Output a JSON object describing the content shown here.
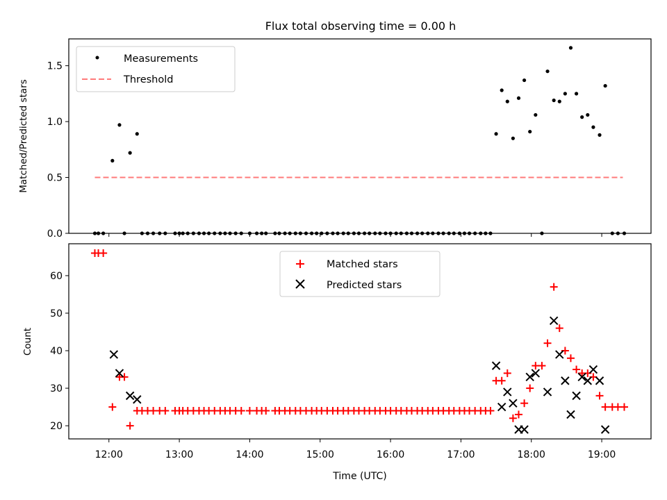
{
  "figure": {
    "title": "Flux total observing time = 0.00 h",
    "xlabel": "Time (UTC)",
    "x_tick_labels": [
      "12:00",
      "13:00",
      "14:00",
      "15:00",
      "16:00",
      "17:00",
      "18:00",
      "19:00"
    ]
  },
  "chart_data": [
    {
      "type": "scatter",
      "title": "Flux total observing time = 0.00 h",
      "ylabel": "Matched/Predicted stars",
      "xlabel": "",
      "x_unit": "hours UTC",
      "xlim": [
        11.43,
        19.7
      ],
      "ylim": [
        0,
        1.74
      ],
      "y_ticks": [
        "0.0",
        "0.5",
        "1.0",
        "1.5"
      ],
      "legend_location": "upper left",
      "series": [
        {
          "name": "Measurements",
          "marker": "dot",
          "color": "#000000",
          "points": [
            [
              11.8,
              0
            ],
            [
              11.85,
              0
            ],
            [
              11.92,
              0
            ],
            [
              12.05,
              0.65
            ],
            [
              12.15,
              0.97
            ],
            [
              12.22,
              0
            ],
            [
              12.3,
              0.72
            ],
            [
              12.4,
              0.89
            ],
            [
              12.47,
              0
            ],
            [
              12.55,
              0
            ],
            [
              12.63,
              0
            ],
            [
              12.72,
              0
            ],
            [
              12.8,
              0
            ],
            [
              12.94,
              0
            ],
            [
              13.0,
              0
            ],
            [
              13.05,
              0
            ],
            [
              13.12,
              0
            ],
            [
              13.2,
              0
            ],
            [
              13.28,
              0
            ],
            [
              13.35,
              0
            ],
            [
              13.42,
              0
            ],
            [
              13.5,
              0
            ],
            [
              13.58,
              0
            ],
            [
              13.65,
              0
            ],
            [
              13.72,
              0
            ],
            [
              13.8,
              0
            ],
            [
              13.88,
              0
            ],
            [
              14.0,
              0
            ],
            [
              14.1,
              0
            ],
            [
              14.17,
              0
            ],
            [
              14.23,
              0
            ],
            [
              14.36,
              0
            ],
            [
              14.42,
              0
            ],
            [
              14.5,
              0
            ],
            [
              14.57,
              0
            ],
            [
              14.65,
              0
            ],
            [
              14.72,
              0
            ],
            [
              14.8,
              0
            ],
            [
              14.88,
              0
            ],
            [
              14.95,
              0
            ],
            [
              15.02,
              0
            ],
            [
              15.1,
              0
            ],
            [
              15.18,
              0
            ],
            [
              15.25,
              0
            ],
            [
              15.33,
              0
            ],
            [
              15.4,
              0
            ],
            [
              15.48,
              0
            ],
            [
              15.55,
              0
            ],
            [
              15.63,
              0
            ],
            [
              15.7,
              0
            ],
            [
              15.78,
              0
            ],
            [
              15.85,
              0
            ],
            [
              15.93,
              0
            ],
            [
              16.0,
              0
            ],
            [
              16.08,
              0
            ],
            [
              16.15,
              0
            ],
            [
              16.23,
              0
            ],
            [
              16.3,
              0
            ],
            [
              16.38,
              0
            ],
            [
              16.45,
              0
            ],
            [
              16.53,
              0
            ],
            [
              16.6,
              0
            ],
            [
              16.68,
              0
            ],
            [
              16.75,
              0
            ],
            [
              16.83,
              0
            ],
            [
              16.9,
              0
            ],
            [
              16.98,
              0
            ],
            [
              17.05,
              0
            ],
            [
              17.12,
              0
            ],
            [
              17.2,
              0
            ],
            [
              17.28,
              0
            ],
            [
              17.35,
              0
            ],
            [
              17.42,
              0
            ],
            [
              17.5,
              0.89
            ],
            [
              17.58,
              1.28
            ],
            [
              17.66,
              1.18
            ],
            [
              17.74,
              0.85
            ],
            [
              17.82,
              1.21
            ],
            [
              17.9,
              1.37
            ],
            [
              17.98,
              0.91
            ],
            [
              18.06,
              1.06
            ],
            [
              18.15,
              0
            ],
            [
              18.23,
              1.45
            ],
            [
              18.32,
              1.19
            ],
            [
              18.4,
              1.18
            ],
            [
              18.48,
              1.25
            ],
            [
              18.56,
              1.66
            ],
            [
              18.64,
              1.25
            ],
            [
              18.72,
              1.04
            ],
            [
              18.8,
              1.06
            ],
            [
              18.88,
              0.95
            ],
            [
              18.97,
              0.88
            ],
            [
              19.05,
              1.32
            ],
            [
              19.15,
              0
            ],
            [
              19.23,
              0
            ],
            [
              19.32,
              0
            ]
          ]
        },
        {
          "name": "Threshold",
          "marker": "dashed-line",
          "color": "#ff7a7a",
          "points": [
            [
              11.8,
              0.5
            ],
            [
              19.3,
              0.5
            ]
          ]
        }
      ]
    },
    {
      "type": "scatter",
      "title": "",
      "ylabel": "Count",
      "xlabel": "Time (UTC)",
      "x_unit": "hours UTC",
      "xlim": [
        11.43,
        19.7
      ],
      "ylim": [
        16.5,
        68.5
      ],
      "y_ticks": [
        "20",
        "30",
        "40",
        "50",
        "60"
      ],
      "legend_location": "upper center",
      "series": [
        {
          "name": "Matched stars",
          "marker": "plus",
          "color": "#ff0000",
          "points": [
            [
              11.8,
              66
            ],
            [
              11.85,
              66
            ],
            [
              11.92,
              66
            ],
            [
              12.05,
              25
            ],
            [
              12.15,
              33
            ],
            [
              12.22,
              33
            ],
            [
              12.3,
              20
            ],
            [
              12.4,
              24
            ],
            [
              12.47,
              24
            ],
            [
              12.55,
              24
            ],
            [
              12.63,
              24
            ],
            [
              12.72,
              24
            ],
            [
              12.8,
              24
            ],
            [
              12.94,
              24
            ],
            [
              13.0,
              24
            ],
            [
              13.05,
              24
            ],
            [
              13.12,
              24
            ],
            [
              13.2,
              24
            ],
            [
              13.28,
              24
            ],
            [
              13.35,
              24
            ],
            [
              13.42,
              24
            ],
            [
              13.5,
              24
            ],
            [
              13.58,
              24
            ],
            [
              13.65,
              24
            ],
            [
              13.72,
              24
            ],
            [
              13.8,
              24
            ],
            [
              13.88,
              24
            ],
            [
              14.0,
              24
            ],
            [
              14.1,
              24
            ],
            [
              14.17,
              24
            ],
            [
              14.23,
              24
            ],
            [
              14.36,
              24
            ],
            [
              14.42,
              24
            ],
            [
              14.5,
              24
            ],
            [
              14.57,
              24
            ],
            [
              14.65,
              24
            ],
            [
              14.72,
              24
            ],
            [
              14.8,
              24
            ],
            [
              14.88,
              24
            ],
            [
              14.95,
              24
            ],
            [
              15.02,
              24
            ],
            [
              15.1,
              24
            ],
            [
              15.18,
              24
            ],
            [
              15.25,
              24
            ],
            [
              15.33,
              24
            ],
            [
              15.4,
              24
            ],
            [
              15.48,
              24
            ],
            [
              15.55,
              24
            ],
            [
              15.63,
              24
            ],
            [
              15.7,
              24
            ],
            [
              15.78,
              24
            ],
            [
              15.85,
              24
            ],
            [
              15.93,
              24
            ],
            [
              16.0,
              24
            ],
            [
              16.08,
              24
            ],
            [
              16.15,
              24
            ],
            [
              16.23,
              24
            ],
            [
              16.3,
              24
            ],
            [
              16.38,
              24
            ],
            [
              16.45,
              24
            ],
            [
              16.53,
              24
            ],
            [
              16.6,
              24
            ],
            [
              16.68,
              24
            ],
            [
              16.75,
              24
            ],
            [
              16.83,
              24
            ],
            [
              16.9,
              24
            ],
            [
              16.98,
              24
            ],
            [
              17.05,
              24
            ],
            [
              17.12,
              24
            ],
            [
              17.2,
              24
            ],
            [
              17.28,
              24
            ],
            [
              17.35,
              24
            ],
            [
              17.42,
              24
            ],
            [
              17.5,
              32
            ],
            [
              17.58,
              32
            ],
            [
              17.66,
              34
            ],
            [
              17.74,
              22
            ],
            [
              17.82,
              23
            ],
            [
              17.9,
              26
            ],
            [
              17.98,
              30
            ],
            [
              18.06,
              36
            ],
            [
              18.15,
              36
            ],
            [
              18.23,
              42
            ],
            [
              18.32,
              57
            ],
            [
              18.4,
              46
            ],
            [
              18.48,
              40
            ],
            [
              18.56,
              38
            ],
            [
              18.64,
              35
            ],
            [
              18.72,
              34
            ],
            [
              18.8,
              34
            ],
            [
              18.88,
              33
            ],
            [
              18.97,
              28
            ],
            [
              19.05,
              25
            ],
            [
              19.15,
              25
            ],
            [
              19.23,
              25
            ],
            [
              19.32,
              25
            ]
          ]
        },
        {
          "name": "Predicted stars",
          "marker": "x",
          "color": "#000000",
          "points": [
            [
              12.07,
              39
            ],
            [
              12.15,
              34
            ],
            [
              12.3,
              28
            ],
            [
              12.4,
              27
            ],
            [
              17.5,
              36
            ],
            [
              17.58,
              25
            ],
            [
              17.66,
              29
            ],
            [
              17.74,
              26
            ],
            [
              17.82,
              19
            ],
            [
              17.9,
              19
            ],
            [
              17.98,
              33
            ],
            [
              18.06,
              34
            ],
            [
              18.23,
              29
            ],
            [
              18.32,
              48
            ],
            [
              18.4,
              39
            ],
            [
              18.48,
              32
            ],
            [
              18.56,
              23
            ],
            [
              18.64,
              28
            ],
            [
              18.72,
              33
            ],
            [
              18.8,
              32
            ],
            [
              18.88,
              35
            ],
            [
              18.97,
              32
            ],
            [
              19.05,
              19
            ]
          ]
        }
      ]
    }
  ]
}
